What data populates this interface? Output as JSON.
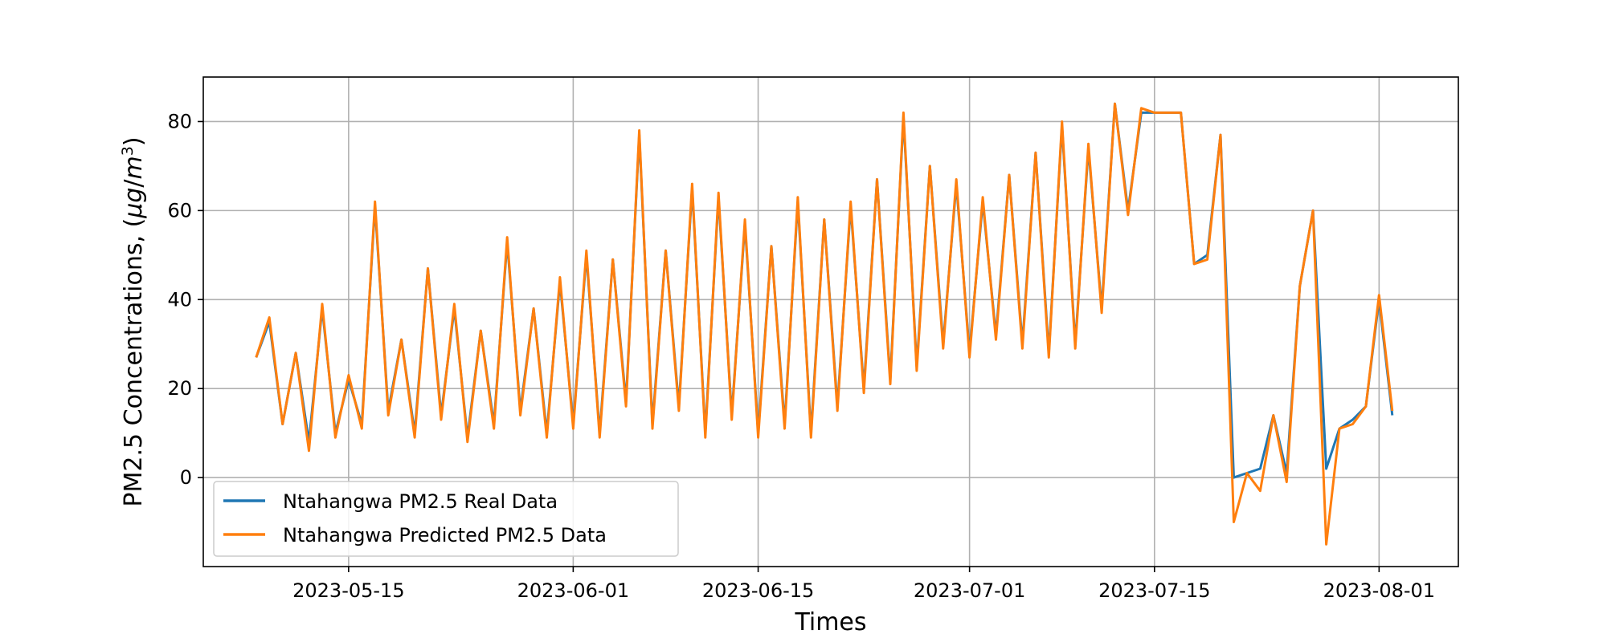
{
  "chart_data": {
    "type": "line",
    "title": "",
    "xlabel": "Times",
    "ylabel": "PM2.5 Concentrations, (μg/m³)",
    "ylabel_parts": {
      "main": "PM2.5 Concentrations, (",
      "mu": "μ",
      "g": "g",
      "slash": "/",
      "m": "m",
      "sup": "3",
      "close": ")"
    },
    "xlim": [
      "2023-05-04",
      "2023-08-07"
    ],
    "ylim": [
      -20,
      90
    ],
    "x_ticks": [
      "2023-05-15",
      "2023-06-01",
      "2023-06-15",
      "2023-07-01",
      "2023-07-15",
      "2023-08-01"
    ],
    "y_ticks": [
      0,
      20,
      40,
      60,
      80
    ],
    "grid": true,
    "legend_position": "lower-left",
    "colors": {
      "real": "#1f77b4",
      "predicted": "#ff7f0e",
      "grid": "#b0b0b0"
    },
    "series": [
      {
        "name": "Ntahangwa PM2.5 Real Data",
        "color": "#1f77b4",
        "x": [
          "2023-05-08",
          "2023-05-09",
          "2023-05-10",
          "2023-05-11",
          "2023-05-12",
          "2023-05-13",
          "2023-05-14",
          "2023-05-15",
          "2023-05-16",
          "2023-05-17",
          "2023-05-18",
          "2023-05-19",
          "2023-05-20",
          "2023-05-21",
          "2023-05-22",
          "2023-05-23",
          "2023-05-24",
          "2023-05-25",
          "2023-05-26",
          "2023-05-27",
          "2023-05-28",
          "2023-05-29",
          "2023-05-30",
          "2023-05-31",
          "2023-06-01",
          "2023-06-02",
          "2023-06-03",
          "2023-06-04",
          "2023-06-05",
          "2023-06-06",
          "2023-06-07",
          "2023-06-08",
          "2023-06-09",
          "2023-06-10",
          "2023-06-11",
          "2023-06-12",
          "2023-06-13",
          "2023-06-14",
          "2023-06-15",
          "2023-06-16",
          "2023-06-17",
          "2023-06-18",
          "2023-06-19",
          "2023-06-20",
          "2023-06-21",
          "2023-06-22",
          "2023-06-23",
          "2023-06-24",
          "2023-06-25",
          "2023-06-26",
          "2023-06-27",
          "2023-06-28",
          "2023-06-29",
          "2023-06-30",
          "2023-07-01",
          "2023-07-02",
          "2023-07-03",
          "2023-07-04",
          "2023-07-05",
          "2023-07-06",
          "2023-07-07",
          "2023-07-08",
          "2023-07-09",
          "2023-07-10",
          "2023-07-11",
          "2023-07-12",
          "2023-07-13",
          "2023-07-14",
          "2023-07-15",
          "2023-07-16",
          "2023-07-17",
          "2023-07-18",
          "2023-07-19",
          "2023-07-20",
          "2023-07-21",
          "2023-07-22",
          "2023-07-23",
          "2023-07-24",
          "2023-07-25",
          "2023-07-26",
          "2023-07-27",
          "2023-07-28",
          "2023-07-29",
          "2023-07-30",
          "2023-07-31",
          "2023-08-01",
          "2023-08-02"
        ],
        "values": [
          27,
          35,
          12,
          28,
          8,
          38,
          10,
          22,
          12,
          61,
          15,
          31,
          10,
          47,
          14,
          38,
          9,
          33,
          12,
          53,
          15,
          38,
          10,
          44,
          12,
          50,
          10,
          49,
          17,
          77,
          12,
          51,
          16,
          65,
          10,
          63,
          14,
          57,
          10,
          52,
          12,
          62,
          10,
          58,
          16,
          61,
          20,
          67,
          22,
          81,
          25,
          70,
          30,
          66,
          28,
          62,
          32,
          68,
          30,
          73,
          28,
          79,
          30,
          74,
          38,
          84,
          60,
          82,
          82,
          82,
          82,
          48,
          50,
          77,
          0,
          1,
          2,
          14,
          1,
          43,
          60,
          2,
          11,
          13,
          16,
          40,
          14
        ]
      },
      {
        "name": "Ntahangwa Predicted PM2.5 Data",
        "color": "#ff7f0e",
        "x": [
          "2023-05-08",
          "2023-05-09",
          "2023-05-10",
          "2023-05-11",
          "2023-05-12",
          "2023-05-13",
          "2023-05-14",
          "2023-05-15",
          "2023-05-16",
          "2023-05-17",
          "2023-05-18",
          "2023-05-19",
          "2023-05-20",
          "2023-05-21",
          "2023-05-22",
          "2023-05-23",
          "2023-05-24",
          "2023-05-25",
          "2023-05-26",
          "2023-05-27",
          "2023-05-28",
          "2023-05-29",
          "2023-05-30",
          "2023-05-31",
          "2023-06-01",
          "2023-06-02",
          "2023-06-03",
          "2023-06-04",
          "2023-06-05",
          "2023-06-06",
          "2023-06-07",
          "2023-06-08",
          "2023-06-09",
          "2023-06-10",
          "2023-06-11",
          "2023-06-12",
          "2023-06-13",
          "2023-06-14",
          "2023-06-15",
          "2023-06-16",
          "2023-06-17",
          "2023-06-18",
          "2023-06-19",
          "2023-06-20",
          "2023-06-21",
          "2023-06-22",
          "2023-06-23",
          "2023-06-24",
          "2023-06-25",
          "2023-06-26",
          "2023-06-27",
          "2023-06-28",
          "2023-06-29",
          "2023-06-30",
          "2023-07-01",
          "2023-07-02",
          "2023-07-03",
          "2023-07-04",
          "2023-07-05",
          "2023-07-06",
          "2023-07-07",
          "2023-07-08",
          "2023-07-09",
          "2023-07-10",
          "2023-07-11",
          "2023-07-12",
          "2023-07-13",
          "2023-07-14",
          "2023-07-15",
          "2023-07-16",
          "2023-07-17",
          "2023-07-18",
          "2023-07-19",
          "2023-07-20",
          "2023-07-21",
          "2023-07-22",
          "2023-07-23",
          "2023-07-24",
          "2023-07-25",
          "2023-07-26",
          "2023-07-27",
          "2023-07-28",
          "2023-07-29",
          "2023-07-30",
          "2023-07-31",
          "2023-08-01",
          "2023-08-02"
        ],
        "values": [
          27,
          36,
          12,
          28,
          6,
          39,
          9,
          23,
          11,
          62,
          14,
          31,
          9,
          47,
          13,
          39,
          8,
          33,
          11,
          54,
          14,
          38,
          9,
          45,
          11,
          51,
          9,
          49,
          16,
          78,
          11,
          51,
          15,
          66,
          9,
          64,
          13,
          58,
          9,
          52,
          11,
          63,
          9,
          58,
          15,
          62,
          19,
          67,
          21,
          82,
          24,
          70,
          29,
          67,
          27,
          63,
          31,
          68,
          29,
          73,
          27,
          80,
          29,
          75,
          37,
          84,
          59,
          83,
          82,
          82,
          82,
          48,
          49,
          77,
          -10,
          1,
          -3,
          14,
          -1,
          43,
          60,
          -15,
          11,
          12,
          16,
          41,
          15
        ]
      }
    ]
  }
}
